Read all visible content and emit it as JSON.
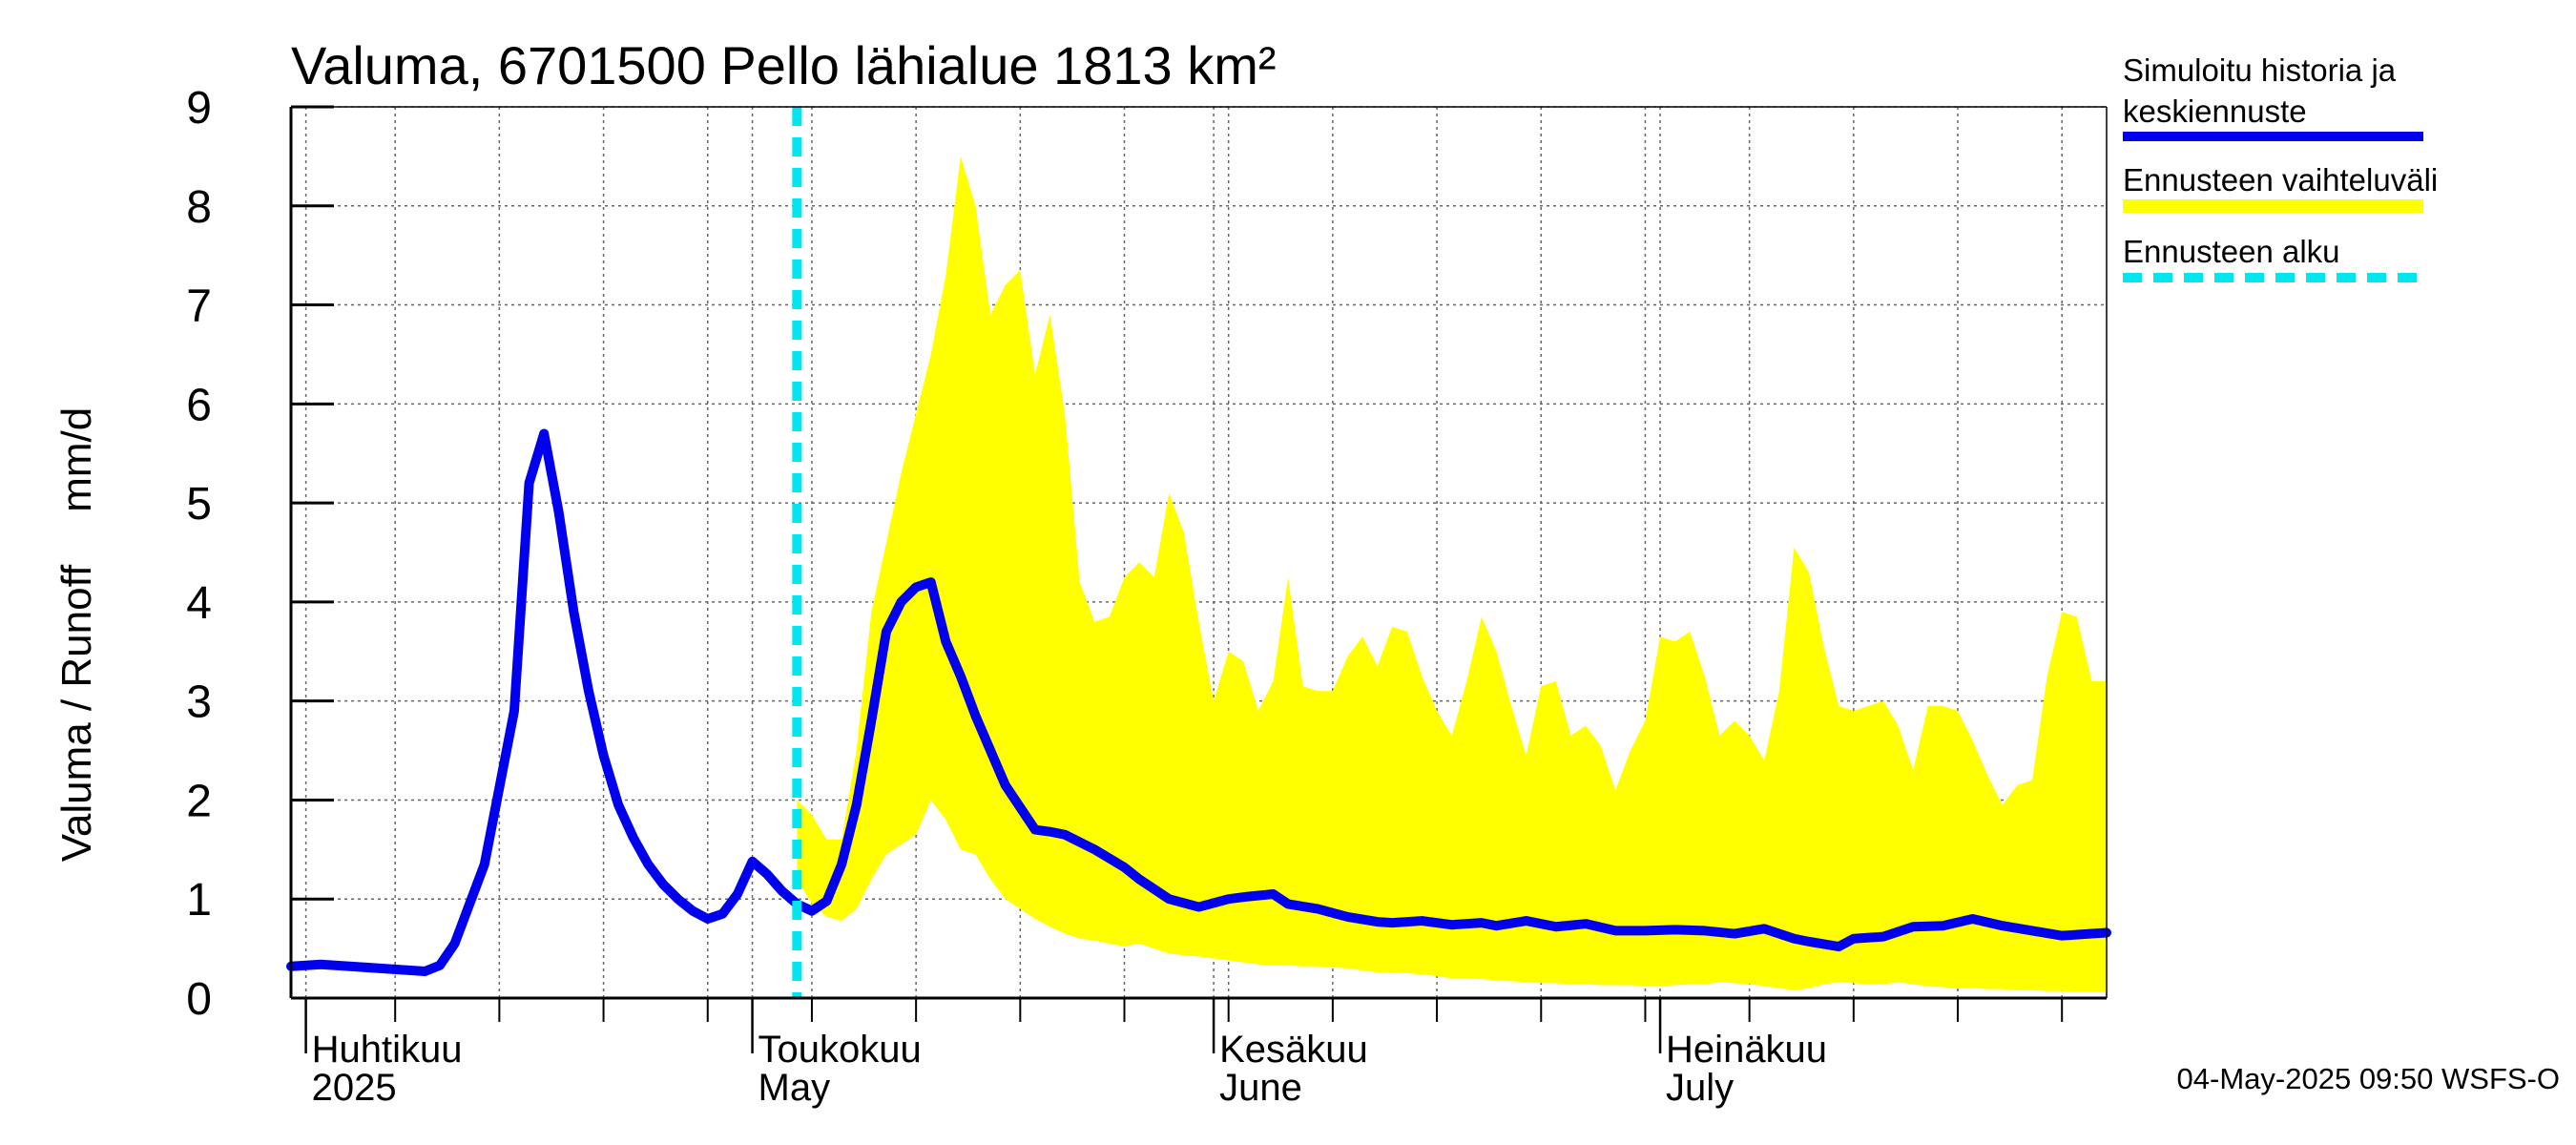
{
  "chart_data": {
    "type": "area",
    "title": "Valuma, 6701500 Pello lähialue 1813 km²",
    "ylabel_left": "Valuma / Runoff",
    "ylabel_right": "mm/d",
    "ylim": [
      0,
      9
    ],
    "yticks": [
      "0",
      "1",
      "2",
      "3",
      "4",
      "5",
      "6",
      "7",
      "8",
      "9"
    ],
    "xlim": [
      "2025-03-31",
      "2025-07-31"
    ],
    "grid": true,
    "x_month_labels": [
      {
        "date": "2025-04-01",
        "fi": "Huhtikuu",
        "en": "2025"
      },
      {
        "date": "2025-05-01",
        "fi": "Toukokuu",
        "en": "May"
      },
      {
        "date": "2025-06-01",
        "fi": "Kesäkuu",
        "en": "June"
      },
      {
        "date": "2025-07-01",
        "fi": "Heinäkuu",
        "en": "July"
      }
    ],
    "forecast_start": "2025-05-04",
    "legend": {
      "placement": "right",
      "items": [
        {
          "label_line1": "Simuloitu historia ja",
          "label_line2": "keskiennuste",
          "color": "#0000ee",
          "style": "solid"
        },
        {
          "label_line1": "Ennusteen vaihteluväli",
          "label_line2": "",
          "color": "#ffff00",
          "style": "band"
        },
        {
          "label_line1": "Ennusteen alku",
          "label_line2": "",
          "color": "#00e5ee",
          "style": "dashed"
        }
      ]
    },
    "series": [
      {
        "name": "Simuloitu historia ja keskiennuste",
        "color": "#0000ee",
        "x": [
          "2025-03-31",
          "2025-04-02",
          "2025-04-06",
          "2025-04-09",
          "2025-04-10",
          "2025-04-11",
          "2025-04-13",
          "2025-04-15",
          "2025-04-16",
          "2025-04-17",
          "2025-04-18",
          "2025-04-19",
          "2025-04-20",
          "2025-04-21",
          "2025-04-22",
          "2025-04-23",
          "2025-04-24",
          "2025-04-25",
          "2025-04-26",
          "2025-04-27",
          "2025-04-28",
          "2025-04-29",
          "2025-04-30",
          "2025-05-01",
          "2025-05-02",
          "2025-05-03",
          "2025-05-04",
          "2025-05-05",
          "2025-05-06",
          "2025-05-07",
          "2025-05-08",
          "2025-05-09",
          "2025-05-10",
          "2025-05-11",
          "2025-05-12",
          "2025-05-13",
          "2025-05-14",
          "2025-05-15",
          "2025-05-16",
          "2025-05-18",
          "2025-05-20",
          "2025-05-21",
          "2025-05-22",
          "2025-05-24",
          "2025-05-26",
          "2025-05-27",
          "2025-05-28",
          "2025-05-29",
          "2025-05-31",
          "2025-06-02",
          "2025-06-03",
          "2025-06-05",
          "2025-06-06",
          "2025-06-08",
          "2025-06-10",
          "2025-06-12",
          "2025-06-13",
          "2025-06-15",
          "2025-06-17",
          "2025-06-19",
          "2025-06-20",
          "2025-06-22",
          "2025-06-24",
          "2025-06-26",
          "2025-06-28",
          "2025-06-30",
          "2025-07-02",
          "2025-07-04",
          "2025-07-06",
          "2025-07-08",
          "2025-07-10",
          "2025-07-11",
          "2025-07-13",
          "2025-07-14",
          "2025-07-16",
          "2025-07-18",
          "2025-07-20",
          "2025-07-22",
          "2025-07-24",
          "2025-07-26",
          "2025-07-28",
          "2025-07-30",
          "2025-07-31"
        ],
        "values": [
          0.32,
          0.34,
          0.3,
          0.27,
          0.33,
          0.55,
          1.35,
          2.9,
          5.2,
          5.7,
          4.9,
          3.9,
          3.1,
          2.45,
          1.95,
          1.62,
          1.35,
          1.15,
          1.0,
          0.88,
          0.8,
          0.85,
          1.05,
          1.38,
          1.25,
          1.08,
          0.95,
          0.88,
          0.98,
          1.35,
          1.95,
          2.8,
          3.7,
          4.0,
          4.15,
          4.2,
          3.6,
          3.25,
          2.85,
          2.15,
          1.7,
          1.68,
          1.65,
          1.5,
          1.32,
          1.2,
          1.1,
          1.0,
          0.92,
          1.0,
          1.02,
          1.05,
          0.95,
          0.9,
          0.82,
          0.77,
          0.76,
          0.78,
          0.74,
          0.76,
          0.73,
          0.78,
          0.72,
          0.75,
          0.68,
          0.68,
          0.69,
          0.68,
          0.65,
          0.7,
          0.6,
          0.57,
          0.52,
          0.6,
          0.62,
          0.72,
          0.73,
          0.8,
          0.73,
          0.68,
          0.63,
          0.65,
          0.66
        ]
      },
      {
        "name": "Ennusteen vaihteluväli",
        "color": "#ffff00",
        "x": [
          "2025-05-04",
          "2025-05-05",
          "2025-05-06",
          "2025-05-07",
          "2025-05-08",
          "2025-05-09",
          "2025-05-10",
          "2025-05-11",
          "2025-05-12",
          "2025-05-13",
          "2025-05-14",
          "2025-05-15",
          "2025-05-16",
          "2025-05-17",
          "2025-05-18",
          "2025-05-19",
          "2025-05-20",
          "2025-05-21",
          "2025-05-22",
          "2025-05-23",
          "2025-05-24",
          "2025-05-25",
          "2025-05-26",
          "2025-05-27",
          "2025-05-28",
          "2025-05-29",
          "2025-05-30",
          "2025-05-31",
          "2025-06-01",
          "2025-06-02",
          "2025-06-03",
          "2025-06-04",
          "2025-06-05",
          "2025-06-06",
          "2025-06-07",
          "2025-06-08",
          "2025-06-09",
          "2025-06-10",
          "2025-06-11",
          "2025-06-12",
          "2025-06-13",
          "2025-06-14",
          "2025-06-15",
          "2025-06-16",
          "2025-06-17",
          "2025-06-18",
          "2025-06-19",
          "2025-06-20",
          "2025-06-21",
          "2025-06-22",
          "2025-06-23",
          "2025-06-24",
          "2025-06-25",
          "2025-06-26",
          "2025-06-27",
          "2025-06-28",
          "2025-06-29",
          "2025-06-30",
          "2025-07-01",
          "2025-07-02",
          "2025-07-03",
          "2025-07-04",
          "2025-07-05",
          "2025-07-06",
          "2025-07-07",
          "2025-07-08",
          "2025-07-09",
          "2025-07-10",
          "2025-07-11",
          "2025-07-12",
          "2025-07-13",
          "2025-07-14",
          "2025-07-15",
          "2025-07-16",
          "2025-07-17",
          "2025-07-18",
          "2025-07-19",
          "2025-07-20",
          "2025-07-21",
          "2025-07-22",
          "2025-07-23",
          "2025-07-24",
          "2025-07-25",
          "2025-07-26",
          "2025-07-27",
          "2025-07-28",
          "2025-07-29",
          "2025-07-30",
          "2025-07-31"
        ],
        "upper": [
          2.0,
          1.85,
          1.6,
          1.6,
          2.5,
          3.9,
          4.6,
          5.3,
          5.9,
          6.5,
          7.3,
          8.5,
          8.0,
          6.9,
          7.2,
          7.35,
          6.3,
          6.9,
          5.9,
          4.2,
          3.8,
          3.85,
          4.25,
          4.4,
          4.25,
          5.1,
          4.7,
          3.8,
          3.0,
          3.5,
          3.4,
          2.9,
          3.2,
          4.25,
          3.15,
          3.1,
          3.1,
          3.45,
          3.65,
          3.35,
          3.75,
          3.7,
          3.25,
          2.9,
          2.65,
          3.2,
          3.85,
          3.5,
          2.95,
          2.45,
          3.15,
          3.2,
          2.65,
          2.75,
          2.55,
          2.1,
          2.5,
          2.8,
          3.65,
          3.6,
          3.7,
          3.25,
          2.65,
          2.8,
          2.65,
          2.4,
          3.1,
          4.55,
          4.3,
          3.55,
          2.95,
          2.9,
          2.95,
          3.0,
          2.75,
          2.3,
          2.95,
          2.95,
          2.9,
          2.6,
          2.25,
          1.95,
          2.15,
          2.2,
          3.25,
          3.9,
          3.85,
          3.2,
          3.2
        ],
        "lower": [
          1.2,
          0.95,
          0.82,
          0.78,
          0.9,
          1.2,
          1.45,
          1.55,
          1.65,
          2.0,
          1.8,
          1.5,
          1.45,
          1.2,
          1.0,
          0.9,
          0.8,
          0.72,
          0.65,
          0.6,
          0.58,
          0.55,
          0.52,
          0.55,
          0.5,
          0.45,
          0.43,
          0.42,
          0.4,
          0.38,
          0.36,
          0.34,
          0.33,
          0.33,
          0.32,
          0.32,
          0.31,
          0.3,
          0.28,
          0.26,
          0.26,
          0.25,
          0.24,
          0.22,
          0.2,
          0.2,
          0.19,
          0.18,
          0.17,
          0.16,
          0.15,
          0.15,
          0.14,
          0.14,
          0.13,
          0.13,
          0.13,
          0.12,
          0.12,
          0.13,
          0.14,
          0.14,
          0.16,
          0.15,
          0.14,
          0.12,
          0.1,
          0.08,
          0.1,
          0.14,
          0.16,
          0.15,
          0.14,
          0.14,
          0.16,
          0.14,
          0.12,
          0.11,
          0.1,
          0.1,
          0.09,
          0.09,
          0.08,
          0.08,
          0.07,
          0.07,
          0.06,
          0.06,
          0.06
        ]
      }
    ]
  },
  "footer": {
    "timestamp": "04-May-2025 09:50 WSFS-O"
  }
}
